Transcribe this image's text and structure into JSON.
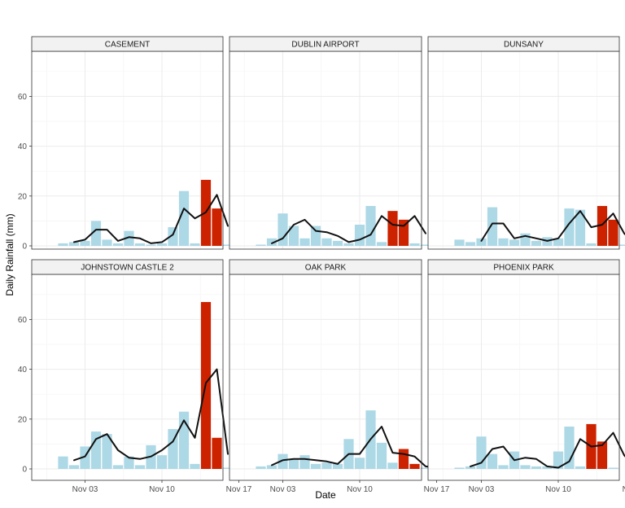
{
  "chart_data": {
    "type": "bar",
    "xlabel": "Date",
    "ylabel": "Daily Rainfall (mm)",
    "ylim": [
      0,
      78
    ],
    "yticks": [
      0,
      20,
      40,
      60
    ],
    "xticks": [
      {
        "day": 3,
        "label": "Nov 03"
      },
      {
        "day": 10,
        "label": "Nov 10"
      },
      {
        "day": 17,
        "label": "Nov 17"
      }
    ],
    "xlim_days": [
      0.3,
      18.2
    ],
    "layout": "2 rows x 3 columns facets",
    "grid": true,
    "legend": "none",
    "colors": {
      "bar": "#add8e6",
      "highlight_bar": "#cc2200",
      "line": "#111111",
      "grid": "#ebebeb",
      "strip_bg": "#f2f2f2"
    },
    "series_note": "bars = daily rainfall per day of November; red bars = highlighted days; line = smoothed trend",
    "facets": [
      {
        "name": "CASEMENT",
        "days": [
          1,
          2,
          3,
          4,
          5,
          6,
          7,
          8,
          9,
          10,
          11,
          12,
          13,
          14,
          15,
          16,
          17
        ],
        "values": [
          1,
          1.5,
          2,
          10,
          2.5,
          1,
          6,
          1,
          0.5,
          1,
          7.5,
          22,
          1,
          26.5,
          15,
          0.5,
          0
        ],
        "highlight": [
          14,
          15
        ],
        "line_days": [
          2,
          3,
          4,
          5,
          6,
          7,
          8,
          9,
          10,
          11,
          12,
          13,
          14,
          15,
          16
        ],
        "line_values": [
          1.5,
          2.5,
          6.5,
          6.5,
          2,
          3.5,
          3,
          1,
          1.5,
          4.5,
          15,
          11,
          13.5,
          20.5,
          8
        ]
      },
      {
        "name": "DUBLIN AIRPORT",
        "days": [
          1,
          2,
          3,
          4,
          5,
          6,
          7,
          8,
          9,
          10,
          11,
          12,
          13,
          14,
          15,
          16
        ],
        "values": [
          0.5,
          3,
          13,
          8,
          3,
          8,
          3,
          2,
          1,
          8.5,
          16,
          1.5,
          14,
          10.5,
          1,
          0.5
        ],
        "highlight": [
          13,
          14
        ],
        "line_days": [
          2,
          3,
          4,
          5,
          6,
          7,
          8,
          9,
          10,
          11,
          12,
          13,
          14,
          15,
          16
        ],
        "line_values": [
          1,
          3,
          8.5,
          10.5,
          6,
          5.5,
          4,
          1.5,
          2.5,
          4.5,
          12,
          8.5,
          8,
          12,
          5
        ]
      },
      {
        "name": "DUNSANY",
        "days": [
          1,
          2,
          3,
          4,
          5,
          6,
          7,
          8,
          9,
          10,
          11,
          12,
          13,
          14,
          15,
          16,
          17
        ],
        "values": [
          2.5,
          1.5,
          3,
          15.5,
          3,
          2.5,
          5,
          2,
          3.5,
          3,
          15,
          14.5,
          1,
          16,
          10.5,
          0.5,
          0
        ],
        "highlight": [
          14,
          15
        ],
        "line_days": [
          3,
          4,
          5,
          6,
          7,
          8,
          9,
          10,
          11,
          12,
          13,
          14,
          15,
          16,
          17
        ],
        "line_values": [
          2,
          9,
          9,
          3,
          4,
          3,
          2,
          3,
          9,
          14,
          7.5,
          8.5,
          13,
          5,
          0.5
        ]
      },
      {
        "name": "JOHNSTOWN CASTLE 2",
        "days": [
          1,
          2,
          3,
          4,
          5,
          6,
          7,
          8,
          9,
          10,
          11,
          12,
          13,
          14,
          15,
          16
        ],
        "values": [
          5,
          1.5,
          9,
          15,
          14,
          1.5,
          5,
          1.5,
          9.5,
          5.5,
          16,
          23,
          2,
          67,
          12.5,
          0.5
        ],
        "highlight": [
          14,
          15
        ],
        "line_days": [
          2,
          3,
          4,
          5,
          6,
          7,
          8,
          9,
          10,
          11,
          12,
          13,
          14,
          15,
          16
        ],
        "line_values": [
          3.5,
          5,
          12,
          14,
          7.5,
          4.5,
          4,
          5,
          7.5,
          11,
          19.5,
          12.5,
          34.5,
          40,
          6
        ]
      },
      {
        "name": "OAK PARK",
        "days": [
          1,
          2,
          3,
          4,
          5,
          6,
          7,
          8,
          9,
          10,
          11,
          12,
          13,
          14,
          15,
          16
        ],
        "values": [
          1,
          1.5,
          6,
          4,
          5.5,
          2,
          2.5,
          2,
          12,
          4.5,
          23.5,
          10.5,
          2.5,
          8,
          2,
          0.5
        ],
        "highlight": [
          14,
          15
        ],
        "line_days": [
          2,
          3,
          4,
          5,
          6,
          7,
          8,
          9,
          10,
          11,
          12,
          13,
          14,
          15,
          16,
          17
        ],
        "line_values": [
          1.5,
          3.5,
          4,
          4,
          3.5,
          3,
          2,
          6,
          6,
          12,
          17,
          6.5,
          6,
          5,
          1,
          0.5
        ]
      },
      {
        "name": "PHOENIX PARK",
        "days": [
          1,
          2,
          3,
          4,
          5,
          6,
          7,
          8,
          9,
          10,
          11,
          12,
          13,
          14,
          15,
          16
        ],
        "values": [
          0.5,
          1,
          13,
          6,
          1.5,
          7,
          1.5,
          1,
          1,
          7,
          17,
          1,
          18,
          11,
          0.5,
          0
        ],
        "highlight": [
          13,
          14
        ],
        "line_days": [
          2,
          3,
          4,
          5,
          6,
          7,
          8,
          9,
          10,
          11,
          12,
          13,
          14,
          15,
          16,
          17
        ],
        "line_values": [
          1,
          2.5,
          8,
          9,
          3.5,
          4.5,
          4,
          1,
          0.5,
          3,
          12,
          9,
          9.5,
          14.5,
          5.5,
          0.5
        ]
      }
    ]
  }
}
